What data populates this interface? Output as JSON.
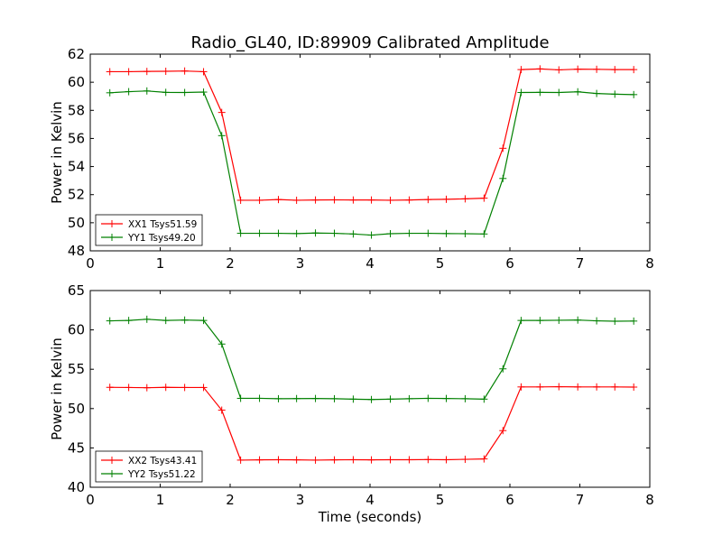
{
  "title": "Radio_GL40, ID:89909 Calibrated Amplitude",
  "colors": {
    "red": "#ff0000",
    "green": "#008000"
  },
  "chart_data": [
    {
      "type": "line",
      "title": "Radio_GL40, ID:89909 Calibrated Amplitude",
      "xlabel": "",
      "ylabel": "Power in Kelvin",
      "xlim": [
        0,
        8
      ],
      "ylim": [
        48,
        62
      ],
      "xticks": [
        "0",
        "1",
        "2",
        "3",
        "4",
        "5",
        "6",
        "7",
        "8"
      ],
      "yticks": [
        "48",
        "50",
        "52",
        "54",
        "56",
        "58",
        "60",
        "62"
      ],
      "grid": false,
      "legend_position": "lower-left",
      "x": [
        0.28,
        0.55,
        0.81,
        1.08,
        1.35,
        1.62,
        1.88,
        2.15,
        2.42,
        2.69,
        2.95,
        3.22,
        3.49,
        3.76,
        4.02,
        4.29,
        4.56,
        4.83,
        5.09,
        5.36,
        5.63,
        5.9,
        6.16,
        6.43,
        6.7,
        6.97,
        7.24,
        7.5,
        7.77
      ],
      "series": [
        {
          "name": "XX1 Tsys51.59",
          "color": "#ff0000",
          "values": [
            60.75,
            60.75,
            60.77,
            60.78,
            60.8,
            60.75,
            57.85,
            51.6,
            51.6,
            51.65,
            51.6,
            51.62,
            51.63,
            51.62,
            51.62,
            51.6,
            51.62,
            51.65,
            51.67,
            51.7,
            51.75,
            55.3,
            60.9,
            60.95,
            60.88,
            60.93,
            60.92,
            60.9,
            60.9
          ]
        },
        {
          "name": "YY1 Tsys49.20",
          "color": "#008000",
          "values": [
            59.25,
            59.33,
            59.38,
            59.28,
            59.27,
            59.3,
            56.2,
            49.25,
            49.25,
            49.25,
            49.23,
            49.27,
            49.25,
            49.2,
            49.12,
            49.22,
            49.25,
            49.25,
            49.23,
            49.22,
            49.2,
            53.15,
            59.27,
            59.28,
            59.27,
            59.32,
            59.2,
            59.15,
            59.12
          ]
        }
      ]
    },
    {
      "type": "line",
      "title": "",
      "xlabel": "Time (seconds)",
      "ylabel": "Power in Kelvin",
      "xlim": [
        0,
        8
      ],
      "ylim": [
        40,
        65
      ],
      "xticks": [
        "0",
        "1",
        "2",
        "3",
        "4",
        "5",
        "6",
        "7",
        "8"
      ],
      "yticks": [
        "40",
        "45",
        "50",
        "55",
        "60",
        "65"
      ],
      "grid": false,
      "legend_position": "lower-left",
      "x": [
        0.28,
        0.55,
        0.81,
        1.08,
        1.35,
        1.62,
        1.88,
        2.15,
        2.42,
        2.69,
        2.95,
        3.22,
        3.49,
        3.76,
        4.02,
        4.29,
        4.56,
        4.83,
        5.09,
        5.36,
        5.63,
        5.9,
        6.16,
        6.43,
        6.7,
        6.97,
        7.24,
        7.5,
        7.77
      ],
      "series": [
        {
          "name": "XX2 Tsys43.41",
          "color": "#ff0000",
          "values": [
            52.7,
            52.68,
            52.65,
            52.7,
            52.68,
            52.68,
            49.8,
            43.45,
            43.48,
            43.5,
            43.48,
            43.45,
            43.48,
            43.5,
            43.48,
            43.5,
            43.5,
            43.52,
            43.5,
            43.55,
            43.6,
            47.2,
            52.75,
            52.75,
            52.78,
            52.75,
            52.75,
            52.75,
            52.73
          ]
        },
        {
          "name": "YY2 Tsys51.22",
          "color": "#008000",
          "values": [
            61.15,
            61.2,
            61.35,
            61.2,
            61.25,
            61.2,
            58.2,
            51.3,
            51.3,
            51.25,
            51.27,
            51.28,
            51.25,
            51.2,
            51.15,
            51.2,
            51.25,
            51.3,
            51.28,
            51.25,
            51.2,
            55.05,
            61.2,
            61.2,
            61.22,
            61.25,
            61.15,
            61.1,
            61.12
          ]
        }
      ]
    }
  ]
}
